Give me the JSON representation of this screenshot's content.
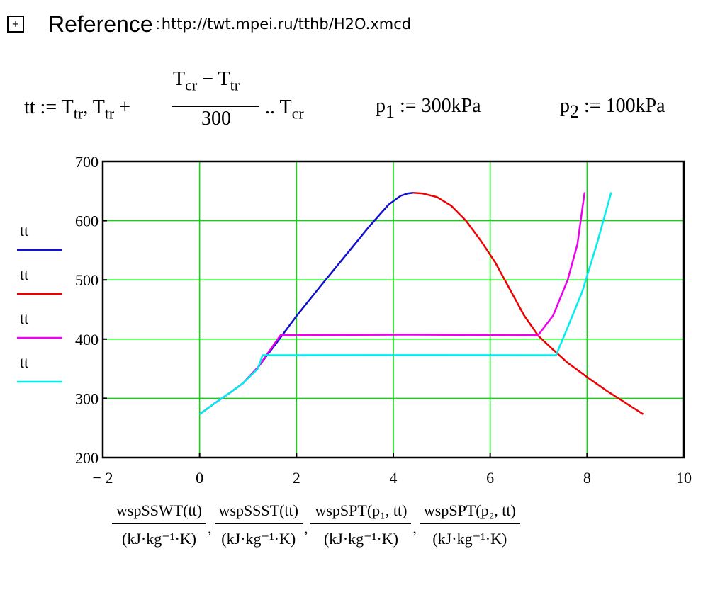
{
  "reference": {
    "button_glyph": "+",
    "label": "Reference",
    "colon": ":",
    "url": "http://twt.mpei.ru/tthb/H2O.xmcd"
  },
  "formulas": {
    "tt_lhs": "tt :=",
    "T": "T",
    "tr": "tr",
    "cr": "cr",
    "comma": ",",
    "plus": "+",
    "minus": "−",
    "denominator": "300",
    "range_dots": "..",
    "p": "p",
    "p1_sub": "1",
    "p1_rhs": ":= 300kPa",
    "p2_sub": "2",
    "p2_rhs": ":= 100kPa"
  },
  "chart_data": {
    "type": "line",
    "xlim": [
      -2,
      10
    ],
    "ylim": [
      200,
      700
    ],
    "x_ticks": [
      -2,
      0,
      2,
      4,
      6,
      8,
      10
    ],
    "y_ticks": [
      200,
      300,
      400,
      500,
      600,
      700
    ],
    "x_tick_labels": [
      "− 2",
      "0",
      "2",
      "4",
      "6",
      "8",
      "10"
    ],
    "y_tick_labels": [
      "200",
      "300",
      "400",
      "500",
      "600",
      "700"
    ],
    "grid": true,
    "grid_color": "#00e000",
    "legend_position": "left",
    "series": [
      {
        "name": "tt",
        "color": "#1010d0",
        "points": [
          [
            0,
            273.16
          ],
          [
            0.3,
            291
          ],
          [
            0.6,
            308
          ],
          [
            0.9,
            326
          ],
          [
            1.2,
            352
          ],
          [
            1.6,
            395
          ],
          [
            2.0,
            439
          ],
          [
            2.5,
            490
          ],
          [
            3.0,
            540
          ],
          [
            3.5,
            590
          ],
          [
            3.9,
            627
          ],
          [
            4.15,
            642
          ],
          [
            4.3,
            646
          ],
          [
            4.41,
            647.1
          ]
        ]
      },
      {
        "name": "tt",
        "color": "#ee0000",
        "points": [
          [
            4.41,
            647.1
          ],
          [
            4.6,
            646
          ],
          [
            4.9,
            640
          ],
          [
            5.2,
            625
          ],
          [
            5.5,
            600
          ],
          [
            5.8,
            567
          ],
          [
            6.1,
            530
          ],
          [
            6.4,
            485
          ],
          [
            6.7,
            440
          ],
          [
            7.0,
            405
          ],
          [
            7.3,
            382
          ],
          [
            7.6,
            360
          ],
          [
            8.0,
            336
          ],
          [
            8.4,
            313
          ],
          [
            8.8,
            292
          ],
          [
            9.16,
            273.16
          ]
        ]
      },
      {
        "name": "tt",
        "color": "#ee00ee",
        "points": [
          [
            0,
            273.16
          ],
          [
            0.3,
            291
          ],
          [
            0.6,
            308
          ],
          [
            0.9,
            326
          ],
          [
            1.2,
            352
          ],
          [
            1.67,
            406.7
          ],
          [
            4.3,
            407.5
          ],
          [
            6.99,
            406.7
          ],
          [
            7.3,
            440
          ],
          [
            7.6,
            500
          ],
          [
            7.8,
            560
          ],
          [
            7.95,
            648
          ]
        ]
      },
      {
        "name": "tt",
        "color": "#00eeee",
        "points": [
          [
            0,
            273.16
          ],
          [
            0.3,
            291
          ],
          [
            0.6,
            308
          ],
          [
            0.9,
            326
          ],
          [
            1.2,
            350
          ],
          [
            1.3,
            372.8
          ],
          [
            4.3,
            373
          ],
          [
            7.36,
            372.8
          ],
          [
            7.6,
            420
          ],
          [
            7.9,
            480
          ],
          [
            8.2,
            560
          ],
          [
            8.5,
            648
          ]
        ]
      }
    ],
    "x_axis_expression": [
      {
        "numerator": "wspSSWT(tt)",
        "denominator": "(kJ·kg⁻¹·K)"
      },
      {
        "numerator": "wspSSST(tt)",
        "denominator": "(kJ·kg⁻¹·K)"
      },
      {
        "numerator": "wspSPT(p₁, tt)",
        "denominator": "(kJ·kg⁻¹·K)"
      },
      {
        "numerator": "wspSPT(p₂, tt)",
        "denominator": "(kJ·kg⁻¹·K)"
      }
    ],
    "x_axis_separator": ","
  }
}
